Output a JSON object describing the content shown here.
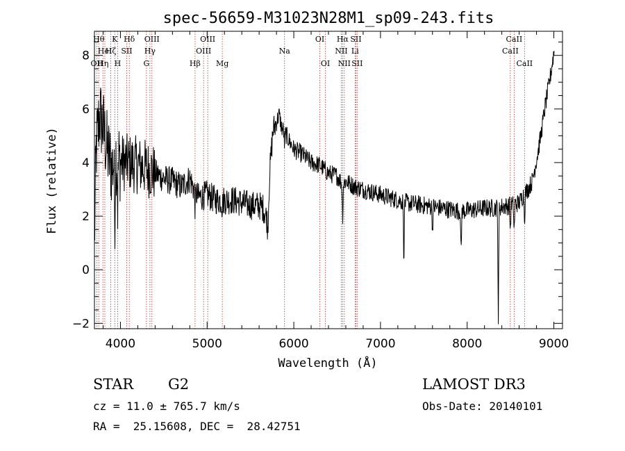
{
  "chart_data": {
    "type": "line",
    "title": "spec-56659-M31023N28M1_sp09-243.fits",
    "xlabel": "Wavelength (Å)",
    "ylabel": "Flux (relative)",
    "xlim": [
      3700,
      9100
    ],
    "ylim": [
      -2.2,
      8.9
    ],
    "xticks": [
      4000,
      5000,
      6000,
      7000,
      8000,
      9000
    ],
    "xtick_labels": [
      "4000",
      "5000",
      "6000",
      "7000",
      "8000",
      "9000"
    ],
    "yticks": [
      -2,
      0,
      2,
      4,
      6,
      8
    ],
    "ytick_labels": [
      "−2",
      "0",
      "2",
      "4",
      "6",
      "8"
    ],
    "spectrum_anchors": {
      "x": [
        3700,
        3720,
        3760,
        3800,
        3850,
        3900,
        3950,
        4000,
        4100,
        4200,
        4300,
        4400,
        4500,
        4600,
        4700,
        4800,
        4850,
        4900,
        5000,
        5100,
        5200,
        5300,
        5400,
        5500,
        5600,
        5650,
        5690,
        5700,
        5720,
        5760,
        5800,
        5830,
        5860,
        5900,
        6000,
        6100,
        6200,
        6300,
        6400,
        6500,
        6560,
        6600,
        6700,
        6800,
        6900,
        7000,
        7100,
        7200,
        7300,
        7400,
        7500,
        7600,
        7700,
        7800,
        7900,
        8000,
        8100,
        8200,
        8300,
        8400,
        8500,
        8600,
        8650,
        8700,
        8750,
        8800,
        8850,
        8900,
        8950,
        9000
      ],
      "y": [
        1.0,
        4.5,
        5.8,
        5.3,
        4.4,
        3.8,
        4.3,
        4.0,
        4.0,
        3.9,
        3.8,
        3.6,
        3.4,
        3.3,
        3.1,
        3.4,
        3.0,
        2.7,
        2.8,
        2.6,
        2.6,
        2.6,
        2.5,
        2.4,
        2.4,
        2.3,
        1.9,
        1.5,
        3.5,
        5.2,
        5.5,
        5.8,
        5.3,
        5.1,
        4.5,
        4.3,
        4.0,
        3.9,
        3.6,
        3.5,
        3.2,
        3.3,
        3.1,
        3.0,
        2.9,
        2.8,
        2.7,
        2.6,
        2.5,
        2.45,
        2.4,
        2.35,
        2.3,
        2.25,
        2.2,
        2.2,
        2.25,
        2.3,
        2.3,
        2.35,
        2.4,
        2.5,
        2.8,
        3.0,
        3.3,
        4.1,
        5.0,
        6.1,
        7.0,
        8.1
      ]
    },
    "absorption_dips": [
      {
        "x": 3934,
        "depth": 2.4
      },
      {
        "x": 3968,
        "depth": 1.8
      },
      {
        "x": 4861,
        "depth": 0.6
      },
      {
        "x": 5175,
        "depth": 0.3
      },
      {
        "x": 5893,
        "depth": 0.5
      },
      {
        "x": 6563,
        "depth": 1.3
      },
      {
        "x": 7270,
        "depth": 2.2
      },
      {
        "x": 7600,
        "depth": 0.9
      },
      {
        "x": 7930,
        "depth": 1.8
      },
      {
        "x": 8360,
        "depth": 4.3
      },
      {
        "x": 8498,
        "depth": 1.0
      },
      {
        "x": 8542,
        "depth": 1.1
      },
      {
        "x": 8662,
        "depth": 1.0
      }
    ],
    "noise_amplitude_blue": 1.1,
    "noise_amplitude_red": 0.35,
    "line_markers": [
      {
        "x": 3727,
        "label": "OII",
        "row": 2
      },
      {
        "x": 3750,
        "label": "Hθ",
        "row": 0
      },
      {
        "x": 3798,
        "label": "Hη",
        "row": 2
      },
      {
        "x": 3820,
        "label": "HeI",
        "row": 1
      },
      {
        "x": 3889,
        "label": "Hζ",
        "row": 1
      },
      {
        "x": 3934,
        "label": "K",
        "row": 0
      },
      {
        "x": 3968,
        "label": "H",
        "row": 2
      },
      {
        "x": 4072,
        "label": "SII",
        "row": 1
      },
      {
        "x": 4102,
        "label": "Hδ",
        "row": 0
      },
      {
        "x": 4300,
        "label": "G",
        "row": 2
      },
      {
        "x": 4340,
        "label": "Hγ",
        "row": 1
      },
      {
        "x": 4363,
        "label": "OIII",
        "row": 0
      },
      {
        "x": 4861,
        "label": "Hβ",
        "row": 2
      },
      {
        "x": 4959,
        "label": "OIII",
        "row": 1
      },
      {
        "x": 5007,
        "label": "OIII",
        "row": 0
      },
      {
        "x": 5175,
        "label": "Mg",
        "row": 2
      },
      {
        "x": 5893,
        "label": "Na",
        "row": 1
      },
      {
        "x": 6300,
        "label": "OI",
        "row": 0
      },
      {
        "x": 6364,
        "label": "OI",
        "row": 2
      },
      {
        "x": 6548,
        "label": "NII",
        "row": 1
      },
      {
        "x": 6563,
        "label": "Hα",
        "row": 0
      },
      {
        "x": 6583,
        "label": "NII",
        "row": 2
      },
      {
        "x": 6707,
        "label": "Li",
        "row": 1
      },
      {
        "x": 6716,
        "label": "SII",
        "row": 0
      },
      {
        "x": 6731,
        "label": "SII",
        "row": 2
      },
      {
        "x": 8498,
        "label": "CaII",
        "row": 1
      },
      {
        "x": 8542,
        "label": "CaII",
        "row": 0
      },
      {
        "x": 8662,
        "label": "CaII",
        "row": 2
      }
    ],
    "colors": {
      "spectrum": "#000000",
      "marker": "#b03030",
      "axis": "#000000"
    }
  },
  "info": {
    "class_label": "STAR",
    "subclass_label": "G2",
    "survey_label": "LAMOST DR3",
    "redshift_text": "cz = 11.0 ± 765.7 km/s",
    "obs_date_text": "Obs-Date: 20140101",
    "coords_text": "RA =  25.15608, DEC =  28.42751"
  }
}
